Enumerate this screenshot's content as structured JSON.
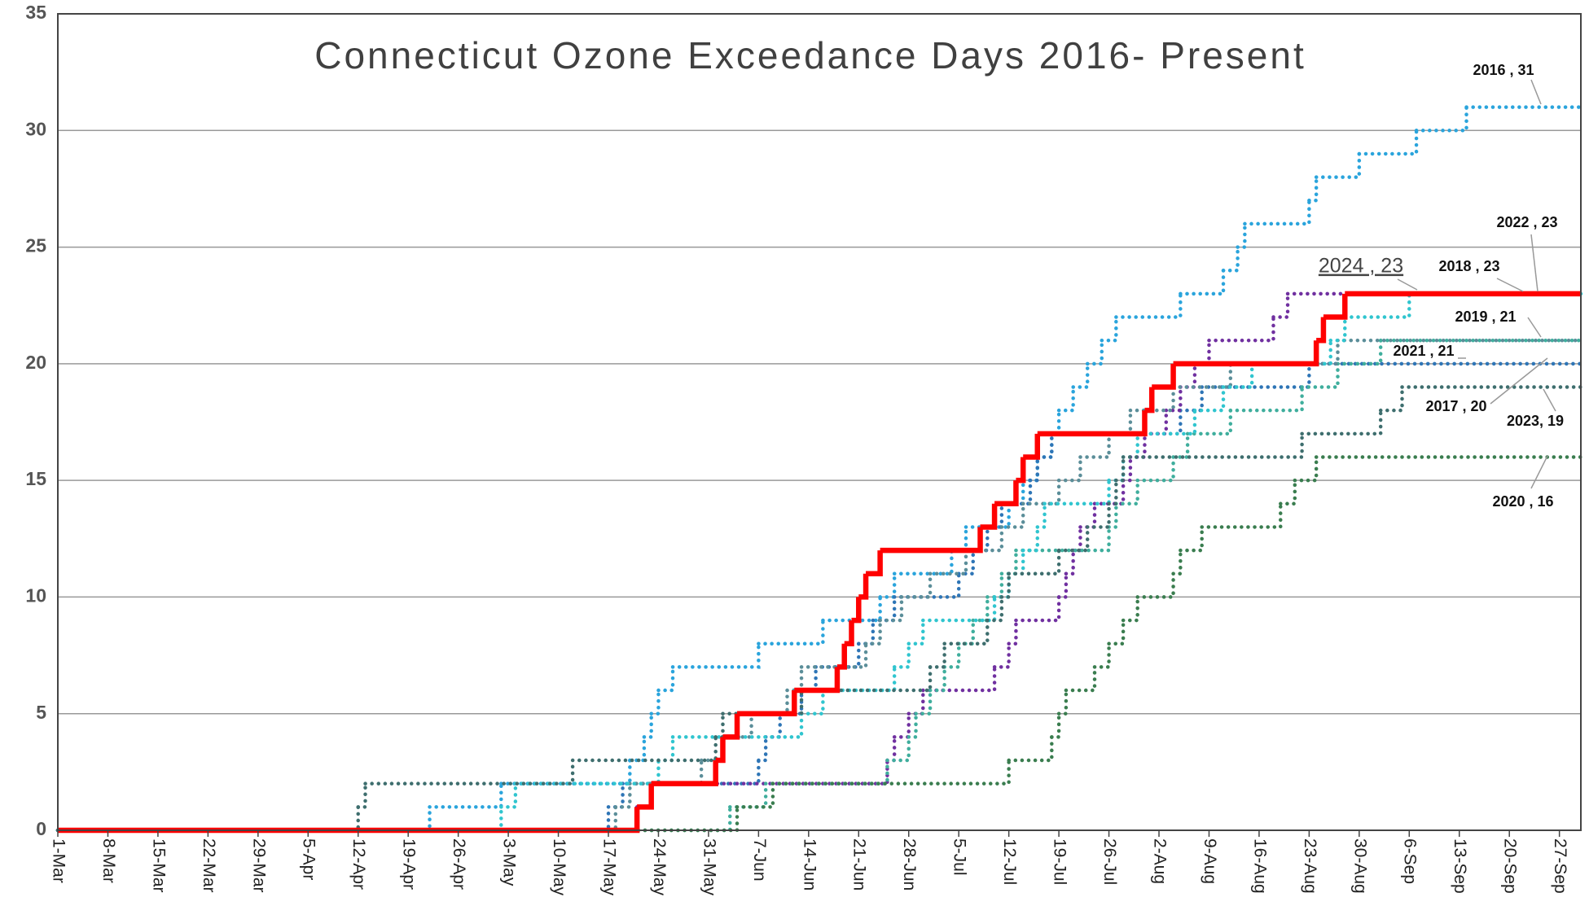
{
  "chart_data": {
    "type": "step",
    "title": "Connecticut Ozone Exceedance Days 2016- Present",
    "xlim": [
      0,
      213
    ],
    "ylim": [
      0,
      35
    ],
    "yticks": [
      0,
      5,
      10,
      15,
      20,
      25,
      30,
      35
    ],
    "xticks": [
      {
        "value": 0,
        "label": "1-Mar"
      },
      {
        "value": 7,
        "label": "8-Mar"
      },
      {
        "value": 14,
        "label": "15-Mar"
      },
      {
        "value": 21,
        "label": "22-Mar"
      },
      {
        "value": 28,
        "label": "29-Mar"
      },
      {
        "value": 35,
        "label": "5-Apr"
      },
      {
        "value": 42,
        "label": "12-Apr"
      },
      {
        "value": 49,
        "label": "19-Apr"
      },
      {
        "value": 56,
        "label": "26-Apr"
      },
      {
        "value": 63,
        "label": "3-May"
      },
      {
        "value": 70,
        "label": "10-May"
      },
      {
        "value": 77,
        "label": "17-May"
      },
      {
        "value": 84,
        "label": "24-May"
      },
      {
        "value": 91,
        "label": "31-May"
      },
      {
        "value": 98,
        "label": "7-Jun"
      },
      {
        "value": 105,
        "label": "14-Jun"
      },
      {
        "value": 112,
        "label": "21-Jun"
      },
      {
        "value": 119,
        "label": "28-Jun"
      },
      {
        "value": 126,
        "label": "5-Jul"
      },
      {
        "value": 133,
        "label": "12-Jul"
      },
      {
        "value": 140,
        "label": "19-Jul"
      },
      {
        "value": 147,
        "label": "26-Jul"
      },
      {
        "value": 154,
        "label": "2-Aug"
      },
      {
        "value": 161,
        "label": "9-Aug"
      },
      {
        "value": 168,
        "label": "16-Aug"
      },
      {
        "value": 175,
        "label": "23-Aug"
      },
      {
        "value": 182,
        "label": "30-Aug"
      },
      {
        "value": 189,
        "label": "6-Sep"
      },
      {
        "value": 196,
        "label": "13-Sep"
      },
      {
        "value": 203,
        "label": "20-Sep"
      },
      {
        "value": 210,
        "label": "27-Sep"
      }
    ],
    "grid": true,
    "series": [
      {
        "name": "2016",
        "color": "#2aa4dc",
        "dash": true,
        "x": [
          0,
          52,
          62,
          80,
          82,
          83,
          84,
          86,
          98,
          107,
          115,
          117,
          125,
          127,
          133,
          135,
          137,
          139,
          140,
          142,
          144,
          146,
          148,
          157,
          163,
          165,
          166,
          175,
          176,
          182,
          190,
          197
        ],
        "values": [
          0,
          1,
          2,
          3,
          4,
          5,
          6,
          7,
          8,
          9,
          10,
          11,
          12,
          13,
          14,
          15,
          16,
          17,
          18,
          19,
          20,
          21,
          22,
          23,
          24,
          25,
          26,
          27,
          28,
          29,
          30,
          31
        ]
      },
      {
        "name": "2017",
        "color": "#2e75b6",
        "dash": true,
        "x": [
          0,
          77,
          79,
          98,
          99,
          101,
          104,
          106,
          112,
          114,
          117,
          126,
          128,
          130,
          132,
          136,
          137,
          139,
          157,
          160,
          175
        ],
        "values": [
          0,
          1,
          2,
          3,
          4,
          5,
          6,
          7,
          8,
          9,
          10,
          11,
          12,
          13,
          14,
          15,
          16,
          17,
          18,
          19,
          20
        ]
      },
      {
        "name": "2018",
        "color": "#7030a0",
        "dash": true,
        "x": [
          0,
          81,
          83,
          116,
          117,
          119,
          121,
          131,
          133,
          134,
          140,
          141,
          142,
          143,
          145,
          149,
          150,
          152,
          155,
          157,
          159,
          161,
          170,
          172
        ],
        "values": [
          0,
          1,
          2,
          3,
          4,
          5,
          6,
          7,
          8,
          9,
          10,
          11,
          12,
          13,
          14,
          15,
          16,
          17,
          18,
          19,
          20,
          21,
          22,
          23
        ]
      },
      {
        "name": "2019",
        "color": "#3fae9d",
        "dash": true,
        "x": [
          0,
          94,
          99,
          116,
          119,
          120,
          122,
          124,
          126,
          128,
          130,
          132,
          134,
          147,
          148,
          151,
          156,
          158,
          164,
          174,
          179,
          185
        ],
        "values": [
          0,
          1,
          2,
          3,
          4,
          5,
          6,
          7,
          8,
          9,
          10,
          11,
          12,
          13,
          14,
          15,
          16,
          17,
          18,
          19,
          20,
          21
        ]
      },
      {
        "name": "2020",
        "color": "#3a7d4f",
        "dash": true,
        "x": [
          0,
          95,
          100,
          133,
          139,
          140,
          141,
          145,
          147,
          149,
          151,
          156,
          157,
          160,
          171,
          173,
          176
        ],
        "values": [
          0,
          1,
          2,
          3,
          4,
          5,
          6,
          7,
          8,
          9,
          10,
          11,
          12,
          13,
          14,
          15,
          16
        ]
      },
      {
        "name": "2021",
        "color": "#5b8e99",
        "dash": true,
        "x": [
          0,
          78,
          80,
          90,
          93,
          97,
          102,
          104,
          113,
          115,
          118,
          122,
          127,
          132,
          135,
          140,
          143,
          147,
          150,
          156,
          164,
          179
        ],
        "values": [
          0,
          1,
          2,
          3,
          4,
          5,
          6,
          7,
          8,
          9,
          10,
          11,
          12,
          13,
          14,
          15,
          16,
          17,
          18,
          19,
          20,
          21
        ]
      },
      {
        "name": "2022",
        "color": "#30c5cf",
        "dash": true,
        "x": [
          0,
          62,
          64,
          84,
          86,
          104,
          107,
          117,
          119,
          121,
          131,
          133,
          135,
          137,
          138,
          147,
          149,
          151,
          159,
          163,
          167,
          178,
          180,
          189
        ],
        "values": [
          0,
          1,
          2,
          3,
          4,
          5,
          6,
          7,
          8,
          9,
          10,
          11,
          12,
          13,
          14,
          15,
          16,
          17,
          18,
          19,
          20,
          21,
          22,
          23
        ]
      },
      {
        "name": "2023",
        "color": "#3e6e6e",
        "dash": true,
        "x": [
          0,
          42,
          43,
          72,
          92,
          93,
          104,
          122,
          124,
          130,
          132,
          133,
          140,
          144,
          147,
          148,
          149,
          174,
          185,
          188
        ],
        "values": [
          0,
          1,
          2,
          3,
          4,
          5,
          6,
          7,
          8,
          9,
          10,
          11,
          12,
          13,
          14,
          15,
          16,
          17,
          18,
          19
        ]
      },
      {
        "name": "2024",
        "color": "#ff0000",
        "dash": false,
        "x": [
          0,
          81,
          83,
          92,
          93,
          95,
          103,
          109,
          110,
          111,
          112,
          113,
          115,
          129,
          131,
          134,
          135,
          137,
          152,
          153,
          156,
          176,
          177,
          180
        ],
        "values": [
          0,
          1,
          2,
          3,
          4,
          5,
          6,
          7,
          8,
          9,
          10,
          11,
          12,
          13,
          14,
          15,
          16,
          17,
          18,
          19,
          20,
          21,
          22,
          23
        ]
      }
    ],
    "annotations": [
      "2016 , 31",
      "2022 , 23",
      "2024 , 23",
      "2018 , 23",
      "2019 , 21",
      "2021 , 21",
      "2017 , 20",
      "2023,  19",
      "2020 , 16"
    ]
  }
}
